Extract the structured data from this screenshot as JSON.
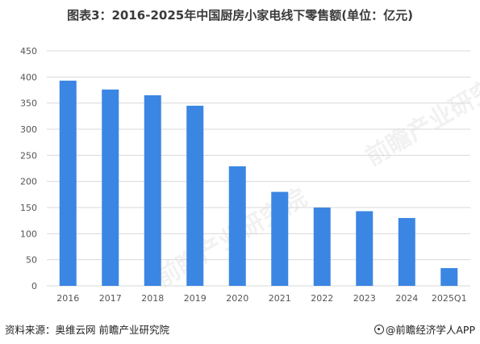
{
  "chart_data": {
    "type": "bar",
    "title": "图表3：2016-2025年中国厨房小家电线下零售额(单位：亿元)",
    "categories": [
      "2016",
      "2017",
      "2018",
      "2019",
      "2020",
      "2021",
      "2022",
      "2023",
      "2024",
      "2025Q1"
    ],
    "values": [
      393,
      376,
      365,
      345,
      229,
      180,
      150,
      143,
      130,
      34
    ],
    "ylim": [
      0,
      450
    ],
    "yticks": [
      0,
      50,
      100,
      150,
      200,
      250,
      300,
      350,
      400,
      450
    ],
    "grid": true,
    "bar_color": "#3b86e3",
    "grid_color": "#d9d9d9",
    "xlabel": "",
    "ylabel": ""
  },
  "watermarks": [
    "前瞻产业研究院",
    "前瞻产业研究院"
  ],
  "footer": {
    "source": "资料来源：奥维云网 前瞻产业研究院",
    "brand": "@前瞻经济学人APP"
  }
}
